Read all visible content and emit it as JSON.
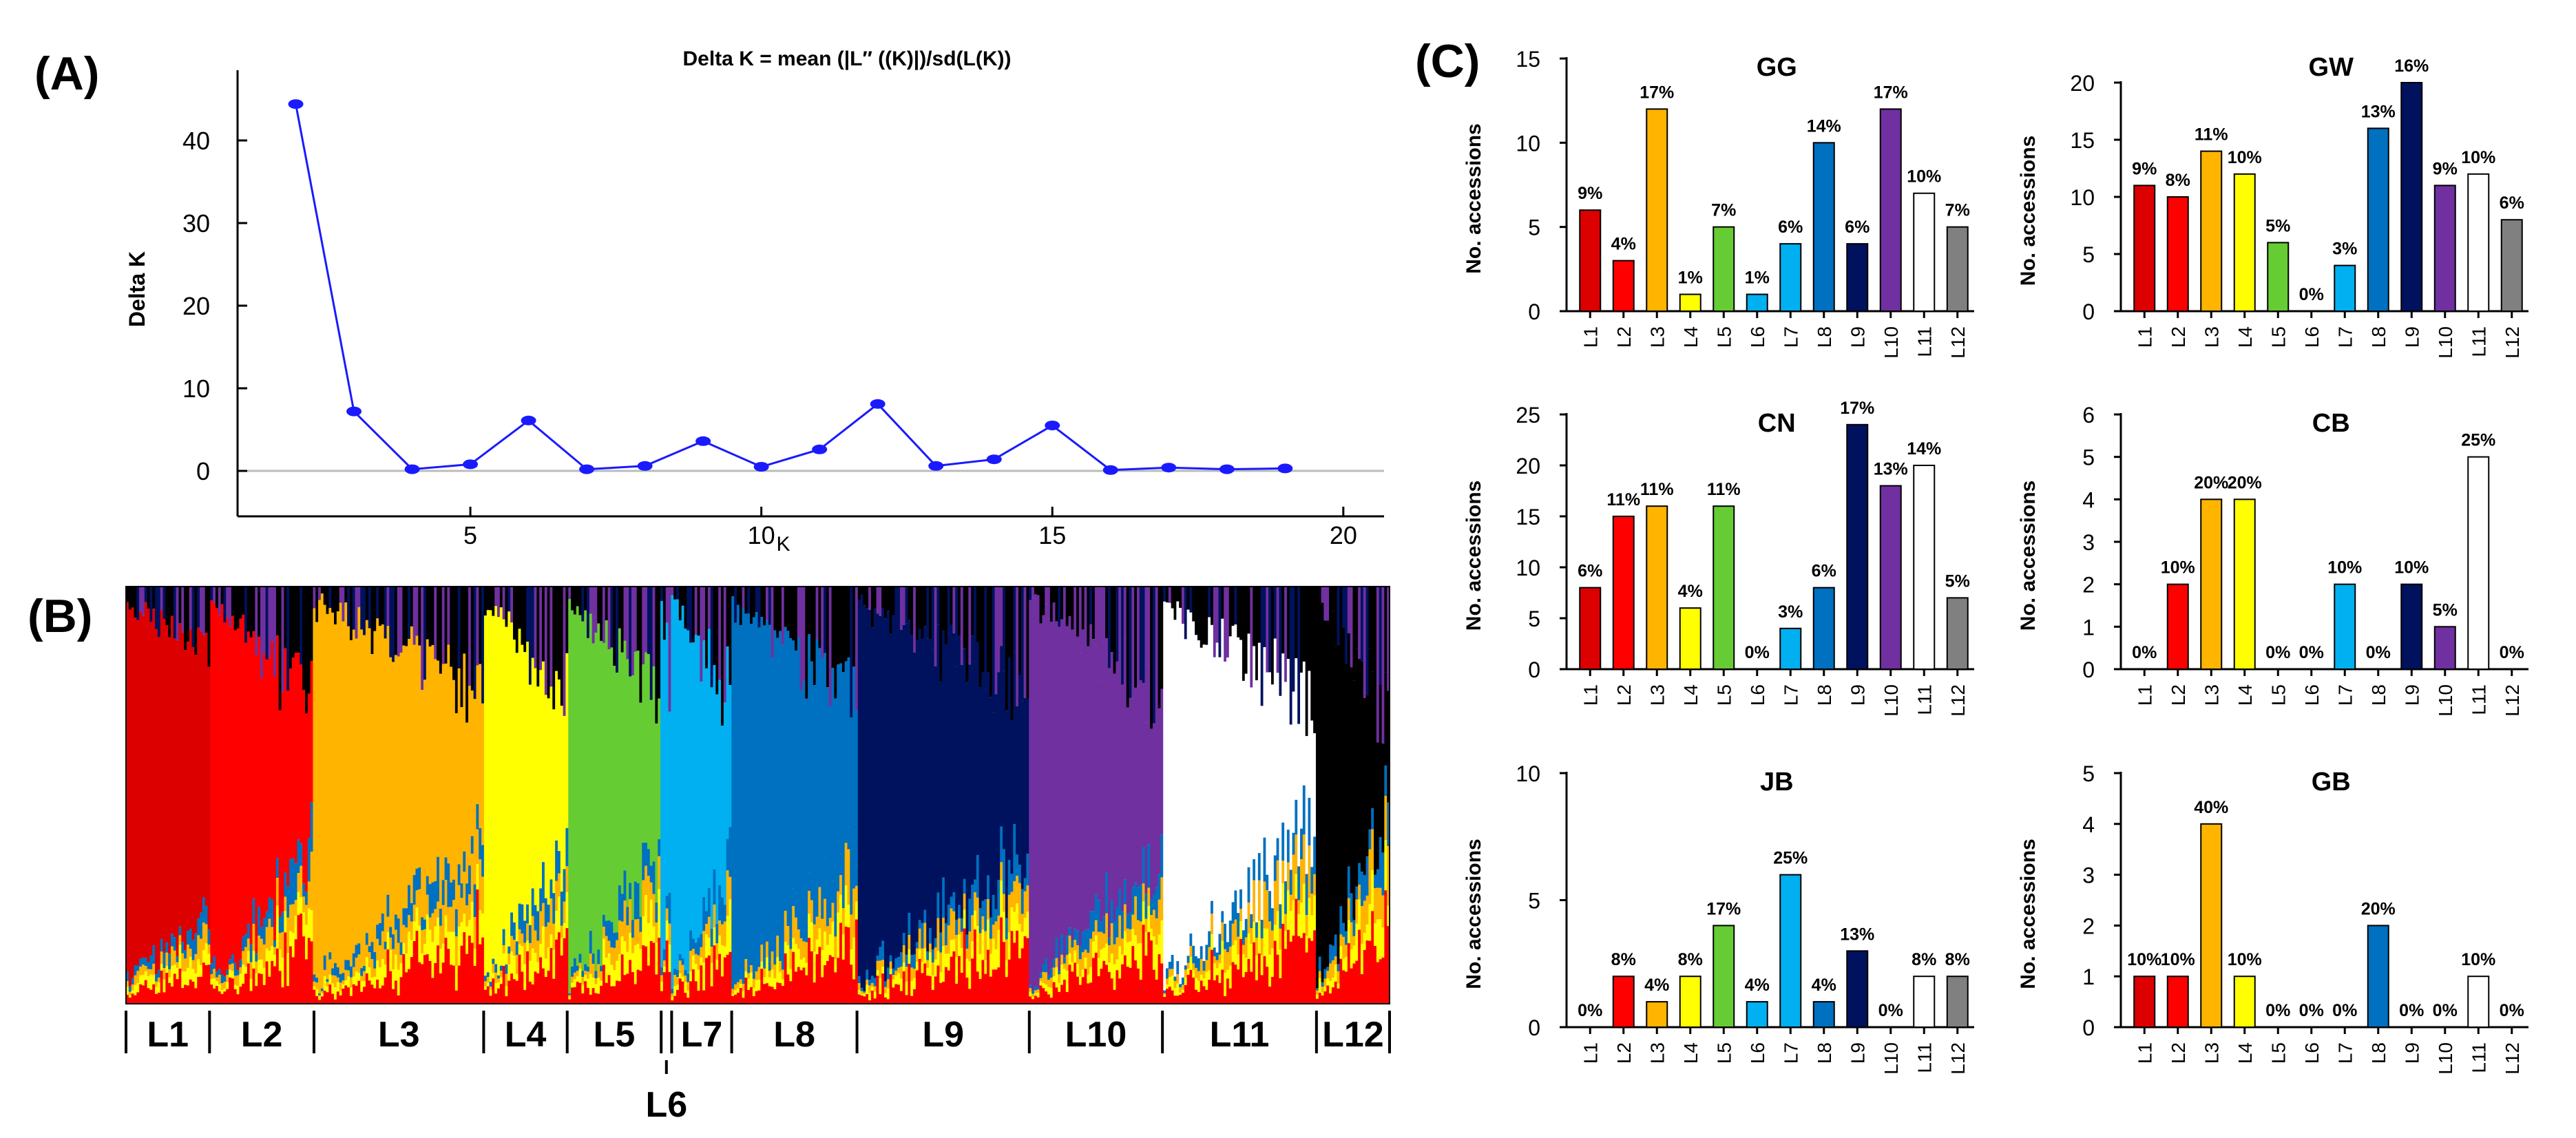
{
  "panel_labels": {
    "a": "(A)",
    "b": "(B)",
    "c": "(C)"
  },
  "colors": {
    "L1": "#dd0000",
    "L2": "#ff0000",
    "L3": "#ffb400",
    "L4": "#ffff00",
    "L5": "#66cc33",
    "L6": "#00b0f0",
    "L7": "#00b0f0",
    "L8": "#0070c0",
    "L9": "#00125e",
    "L10": "#7030a0",
    "L11": "#ffffff",
    "L12": "#808080",
    "deltak_line": "#1a1aff",
    "structure_black": "#000000"
  },
  "chart_data": [
    {
      "id": "deltaK",
      "type": "line",
      "title": "Delta K = mean (|L″ ((K)|)/sd(L(K))",
      "xlabel": "K",
      "ylabel": "Delta K",
      "xlim": [
        1,
        20.7
      ],
      "ylim": [
        -5.5,
        48.5
      ],
      "xticks": [
        5,
        10,
        15,
        20
      ],
      "yticks": [
        0,
        10,
        20,
        30,
        40
      ],
      "x": [
        2,
        3,
        4,
        5,
        6,
        7,
        8,
        9,
        10,
        11,
        12,
        13,
        14,
        15,
        16,
        17,
        18,
        19
      ],
      "y": [
        44.4,
        7.2,
        0.2,
        0.8,
        6.1,
        0.2,
        0.6,
        3.6,
        0.5,
        2.6,
        8.1,
        0.6,
        1.4,
        5.5,
        0.1,
        0.4,
        0.2,
        0.3
      ]
    },
    {
      "id": "structure",
      "type": "area",
      "description": "STRUCTURE admixture barplot, K = 12",
      "clusters": [
        "L1",
        "L2",
        "L3",
        "L4",
        "L5",
        "L6",
        "L7",
        "L8",
        "L9",
        "L10",
        "L11",
        "L12"
      ],
      "group_labels": [
        "L1",
        "L2",
        "L3",
        "L4",
        "L5",
        "L6",
        "L7",
        "L8",
        "L9",
        "L10",
        "L11",
        "L12"
      ],
      "group_relative_sizes": [
        32,
        40,
        65,
        32,
        36,
        4,
        23,
        48,
        66,
        51,
        59,
        28
      ]
    },
    {
      "id": "GG",
      "type": "bar",
      "title": "GG",
      "ylabel": "No. accessions",
      "ylim": [
        0,
        15
      ],
      "yticks": [
        0,
        5,
        10,
        15
      ],
      "categories": [
        "L1",
        "L2",
        "L3",
        "L4",
        "L5",
        "L6",
        "L7",
        "L8",
        "L9",
        "L10",
        "L11",
        "L12"
      ],
      "values": [
        6,
        3,
        12,
        1,
        5,
        1,
        4,
        10,
        4,
        12,
        7,
        5
      ],
      "labels": [
        "9%",
        "4%",
        "17%",
        "1%",
        "7%",
        "1%",
        "6%",
        "14%",
        "6%",
        "17%",
        "10%",
        "7%"
      ]
    },
    {
      "id": "GW",
      "type": "bar",
      "title": "GW",
      "ylabel": "No. accessions",
      "ylim": [
        0,
        20
      ],
      "yticks": [
        0,
        5,
        10,
        15,
        20
      ],
      "categories": [
        "L1",
        "L2",
        "L3",
        "L4",
        "L5",
        "L6",
        "L7",
        "L8",
        "L9",
        "L10",
        "L11",
        "L12"
      ],
      "values": [
        11,
        10,
        14,
        12,
        6,
        0,
        4,
        16,
        20,
        11,
        12,
        8
      ],
      "labels": [
        "9%",
        "8%",
        "11%",
        "10%",
        "5%",
        "0%",
        "3%",
        "13%",
        "16%",
        "9%",
        "10%",
        "6%"
      ]
    },
    {
      "id": "CN",
      "type": "bar",
      "title": "CN",
      "ylabel": "No. accessions",
      "ylim": [
        0,
        25
      ],
      "yticks": [
        0,
        5,
        10,
        15,
        20,
        25
      ],
      "categories": [
        "L1",
        "L2",
        "L3",
        "L4",
        "L5",
        "L6",
        "L7",
        "L8",
        "L9",
        "L10",
        "L11",
        "L12"
      ],
      "values": [
        8,
        15,
        16,
        6,
        16,
        0,
        4,
        8,
        24,
        18,
        20,
        7
      ],
      "labels": [
        "6%",
        "11%",
        "11%",
        "4%",
        "11%",
        "0%",
        "3%",
        "6%",
        "17%",
        "13%",
        "14%",
        "5%"
      ]
    },
    {
      "id": "CB",
      "type": "bar",
      "title": "CB",
      "ylabel": "No. accessions",
      "ylim": [
        0,
        6
      ],
      "yticks": [
        0,
        1,
        2,
        3,
        4,
        5,
        6
      ],
      "categories": [
        "L1",
        "L2",
        "L3",
        "L4",
        "L5",
        "L6",
        "L7",
        "L8",
        "L9",
        "L10",
        "L11",
        "L12"
      ],
      "values": [
        0,
        2,
        4,
        4,
        0,
        0,
        2,
        0,
        2,
        1,
        5,
        0
      ],
      "labels": [
        "0%",
        "10%",
        "20%",
        "20%",
        "0%",
        "0%",
        "10%",
        "0%",
        "10%",
        "5%",
        "25%",
        "0%"
      ]
    },
    {
      "id": "JB",
      "type": "bar",
      "title": "JB",
      "ylabel": "No. accessions",
      "ylim": [
        0,
        10
      ],
      "yticks": [
        0,
        5,
        10
      ],
      "categories": [
        "L1",
        "L2",
        "L3",
        "L4",
        "L5",
        "L6",
        "L7",
        "L8",
        "L9",
        "L10",
        "L11",
        "L12"
      ],
      "values": [
        0,
        2,
        1,
        2,
        4,
        1,
        6,
        1,
        3,
        0,
        2,
        2
      ],
      "labels": [
        "0%",
        "8%",
        "4%",
        "8%",
        "17%",
        "4%",
        "25%",
        "4%",
        "13%",
        "0%",
        "8%",
        "8%"
      ]
    },
    {
      "id": "GB",
      "type": "bar",
      "title": "GB",
      "ylabel": "No. accessions",
      "ylim": [
        0,
        5
      ],
      "yticks": [
        0,
        1,
        2,
        3,
        4,
        5
      ],
      "categories": [
        "L1",
        "L2",
        "L3",
        "L4",
        "L5",
        "L6",
        "L7",
        "L8",
        "L9",
        "L10",
        "L11",
        "L12"
      ],
      "values": [
        1,
        1,
        4,
        1,
        0,
        0,
        0,
        2,
        0,
        0,
        1,
        0
      ],
      "labels": [
        "10%",
        "10%",
        "40%",
        "10%",
        "0%",
        "0%",
        "0%",
        "20%",
        "0%",
        "0%",
        "10%",
        "0%"
      ]
    }
  ]
}
